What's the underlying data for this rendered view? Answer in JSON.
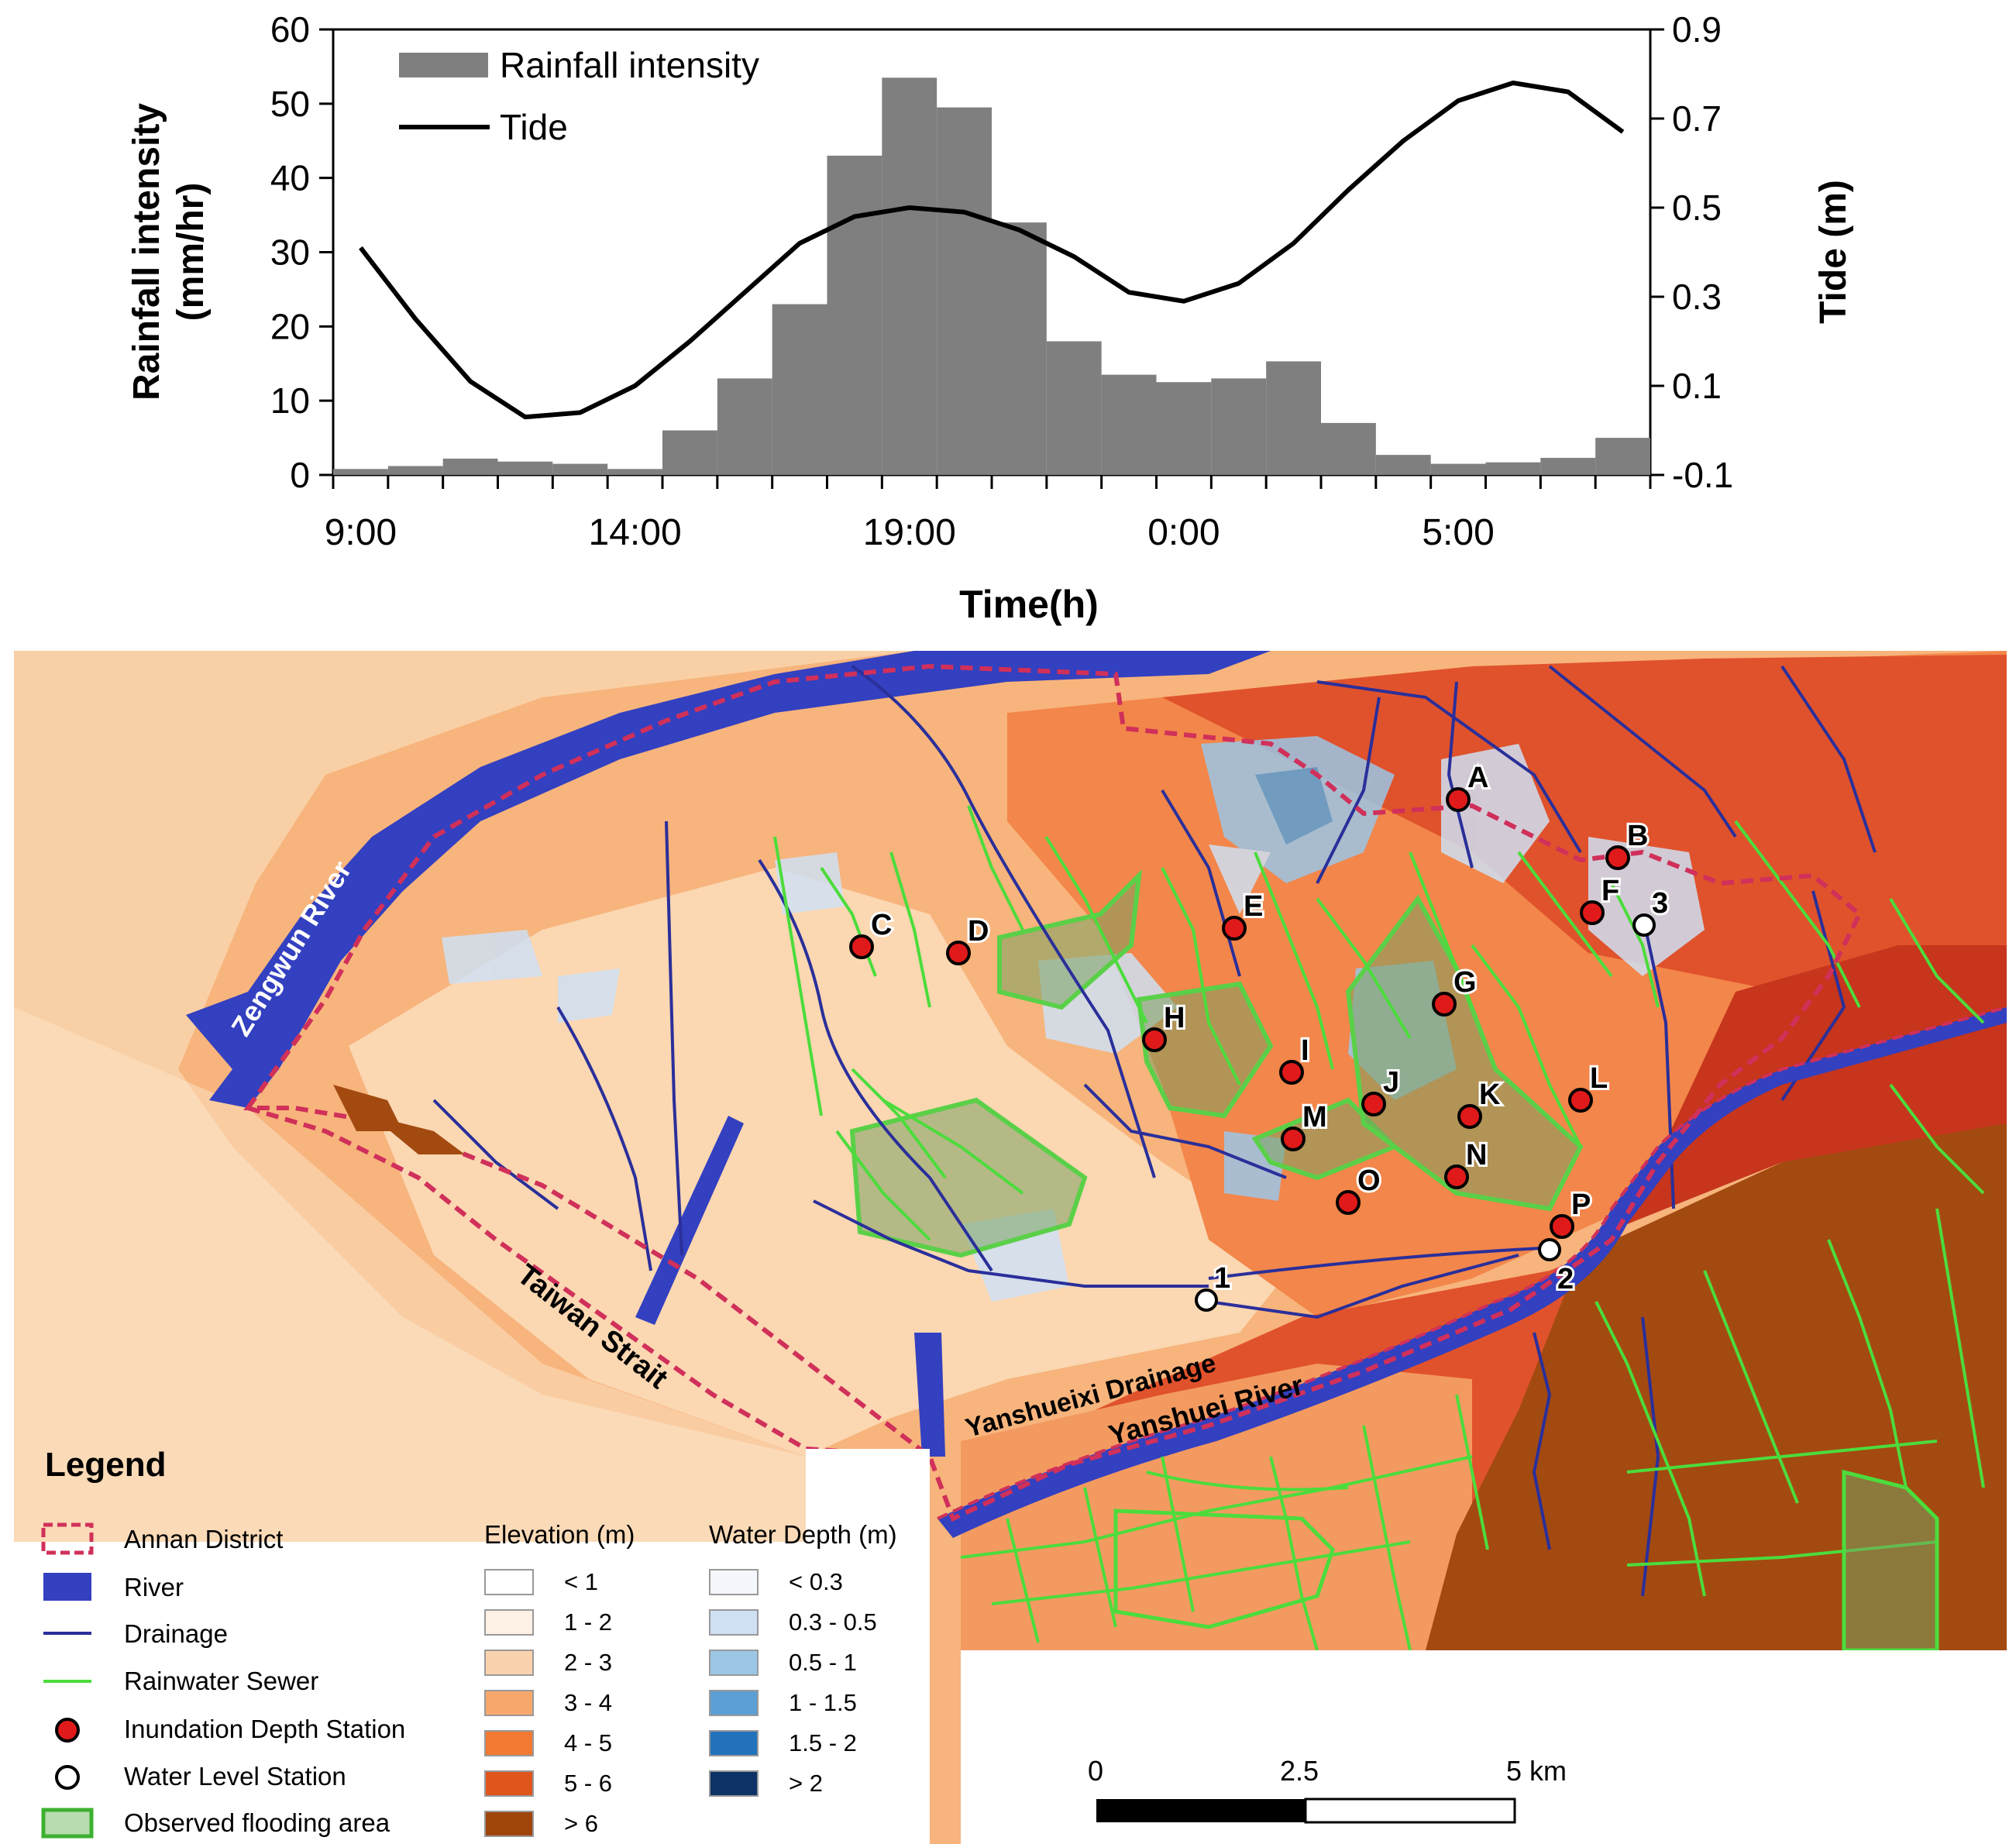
{
  "chart_data": {
    "type": "bar+line",
    "legend": {
      "bar": "Rainfall intensity",
      "line": "Tide",
      "placement": "top-left"
    },
    "ylabel": "Rainfall intensity (mm/hr)",
    "ylabel_lines": [
      "Rainfall intensity",
      "(mm/hr)"
    ],
    "y2label": "Tide (m)",
    "xlabel": "Time(h)",
    "ylim": [
      0,
      60
    ],
    "y2lim": [
      -0.1,
      0.9
    ],
    "yticks": [
      "0",
      "10",
      "20",
      "30",
      "40",
      "50",
      "60"
    ],
    "y2ticks": [
      "-0.1",
      "0.1",
      "0.3",
      "0.5",
      "0.7",
      "0.9"
    ],
    "xticks": [
      "9:00",
      "14:00",
      "19:00",
      "0:00",
      "5:00"
    ],
    "xtick_hours": [
      0,
      5,
      10,
      15,
      20
    ],
    "hours_span": 24,
    "rainfall_values": [
      0.8,
      1.2,
      2.2,
      1.8,
      1.5,
      0.8,
      6.0,
      13.0,
      23.0,
      43.0,
      53.5,
      49.5,
      34.0,
      18.0,
      13.5,
      12.5,
      13.0,
      15.3,
      7.0,
      2.7,
      1.5,
      1.7,
      2.3,
      5.0
    ],
    "tide_hours": [
      0.5,
      1.5,
      2.5,
      3.5,
      4.5,
      5.5,
      6.5,
      7.5,
      8.5,
      9.5,
      10.5,
      11.5,
      12.5,
      13.5,
      14.5,
      15.5,
      16.5,
      17.5,
      18.5,
      19.5,
      20.5,
      21.5,
      22.5,
      23.5
    ],
    "tide_values": [
      0.41,
      0.25,
      0.11,
      0.03,
      0.04,
      0.1,
      0.2,
      0.31,
      0.42,
      0.48,
      0.5,
      0.49,
      0.45,
      0.39,
      0.31,
      0.29,
      0.33,
      0.42,
      0.54,
      0.65,
      0.74,
      0.78,
      0.76,
      0.67
    ],
    "colors": {
      "bar": "#7f7f7f",
      "line": "#000000"
    }
  },
  "map": {
    "labels": {
      "zengwun": "Zengwun River",
      "strait": "Taiwan Strait",
      "drainage": "Yanshueixi Drainage",
      "yanshuei": "Yanshuei River"
    },
    "inundation_stations": [
      "A",
      "B",
      "C",
      "D",
      "E",
      "F",
      "G",
      "H",
      "I",
      "J",
      "K",
      "L",
      "M",
      "N",
      "O",
      "P"
    ],
    "water_level_stations": [
      "1",
      "2",
      "3"
    ],
    "colors": {
      "river": "#3340c0",
      "drainage": "#2a2f9a",
      "sewer": "#4cdc3c",
      "annan": "#d0305a",
      "station_red": "#e01a1a",
      "flood_area": "#56a048"
    }
  },
  "legend": {
    "title": "Legend",
    "items": [
      "Annan District",
      "River",
      "Drainage",
      "Rainwater Sewer",
      "Inundation Depth Station",
      "Water Level Station",
      "Observed flooding area"
    ],
    "elevation_title": "Elevation (m)",
    "elevation": [
      {
        "label": "< 1",
        "color": "#ffffff"
      },
      {
        "label": "1 - 2",
        "color": "#fdf0e4"
      },
      {
        "label": "2 - 3",
        "color": "#fbd2ae"
      },
      {
        "label": "3 - 4",
        "color": "#f8a86c"
      },
      {
        "label": "4 - 5",
        "color": "#f27a32"
      },
      {
        "label": "5 - 6",
        "color": "#e0551c"
      },
      {
        "label": "> 6",
        "color": "#a0450a"
      }
    ],
    "depth_title": "Water Depth (m)",
    "depth": [
      {
        "label": "< 0.3",
        "color": "#f4f7fc"
      },
      {
        "label": "0.3 - 0.5",
        "color": "#cfe0f3"
      },
      {
        "label": "0.5 - 1",
        "color": "#9cc6e6"
      },
      {
        "label": "1 - 1.5",
        "color": "#5b9fd4"
      },
      {
        "label": "1.5 - 2",
        "color": "#2272bb"
      },
      {
        "label": "> 2",
        "color": "#0c3266"
      }
    ]
  },
  "scalebar": {
    "ticks": [
      "0",
      "2.5",
      "5 km"
    ]
  }
}
